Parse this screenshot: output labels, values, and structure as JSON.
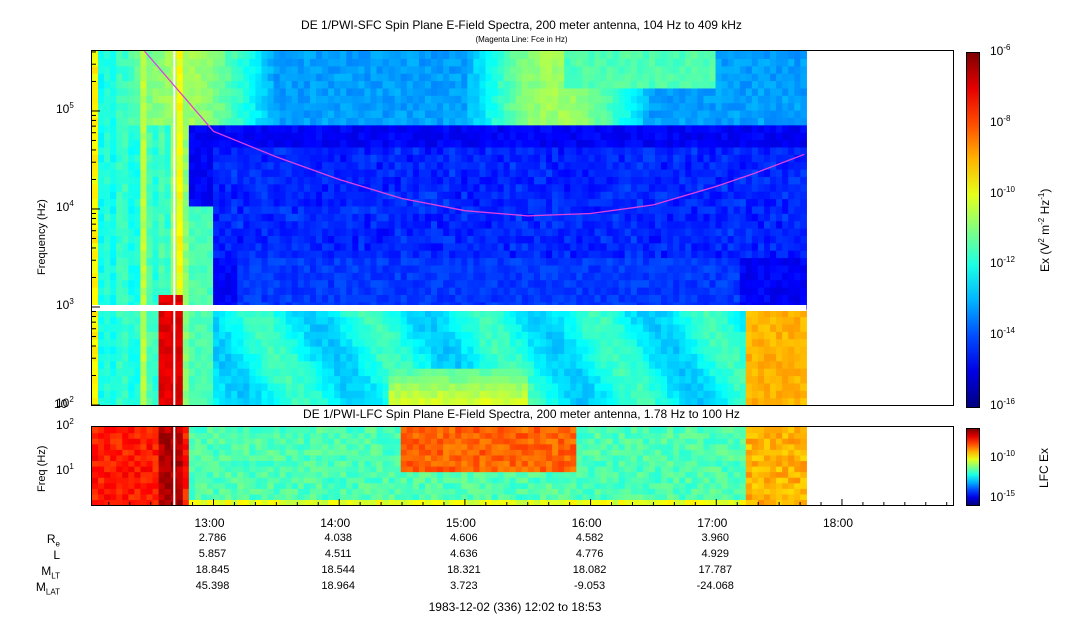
{
  "chart_data": [
    {
      "type": "heatmap",
      "title": "DE 1/PWI-SFC  Spin Plane E-Field Spectra, 200 meter antenna, 104 Hz to 409 kHz",
      "subtitle": "(Magenta Line: Fce in Hz)",
      "ylabel": "Frequency (Hz)",
      "yscale": "log",
      "ylim": [
        100,
        409000
      ],
      "yticks": [
        "10^2",
        "10^3",
        "10^4",
        "10^5"
      ],
      "xlim": [
        "12:02",
        "18:53"
      ],
      "data_end": "17:43",
      "colorbar": {
        "label": "Ex (V^2 m^-2 Hz^-1)",
        "scale": "log",
        "range": [
          1e-16,
          1e-06
        ],
        "ticks": [
          "10^-6",
          "10^-8",
          "10^-10",
          "10^-12",
          "10^-14",
          "10^-16"
        ]
      },
      "fce_line": {
        "color": "#e040e0",
        "time_hours": [
          12.45,
          13.0,
          13.5,
          14.0,
          14.5,
          15.0,
          15.5,
          16.0,
          16.5,
          17.0,
          17.3,
          17.7
        ],
        "freq_hz": [
          409000,
          62000,
          34000,
          20000,
          12800,
          9600,
          8500,
          9000,
          11000,
          17000,
          23000,
          36000
        ]
      }
    },
    {
      "type": "heatmap",
      "title": "DE 1/PWI-LFC  Spin Plane E-Field Spectra, 200 meter antenna, 1.78 Hz to 100 Hz",
      "ylabel": "Freq (Hz)",
      "yscale": "log",
      "ylim": [
        1.78,
        100
      ],
      "yticks": [
        "10^1",
        "10^2"
      ],
      "colorbar": {
        "label": "LFC Ex",
        "scale": "log",
        "ticks": [
          "10^-10",
          "10^-15"
        ]
      }
    }
  ],
  "xaxis": {
    "ticks": [
      "13:00",
      "14:00",
      "15:00",
      "16:00",
      "17:00",
      "18:00"
    ],
    "date_label": "1983-12-02 (336) 12:02 to 18:53"
  },
  "ephemeris": {
    "rows": [
      {
        "label": "R",
        "sub": "e",
        "values": [
          "2.786",
          "4.038",
          "4.606",
          "4.582",
          "3.960"
        ]
      },
      {
        "label": "L",
        "sub": "",
        "values": [
          "5.857",
          "4.511",
          "4.636",
          "4.776",
          "4.929"
        ]
      },
      {
        "label": "M",
        "sub": "LT",
        "values": [
          "18.845",
          "18.544",
          "18.321",
          "18.082",
          "17.787"
        ]
      },
      {
        "label": "M",
        "sub": "LAT",
        "values": [
          "45.398",
          "18.964",
          "3.723",
          "-9.053",
          "-24.068"
        ]
      }
    ]
  }
}
